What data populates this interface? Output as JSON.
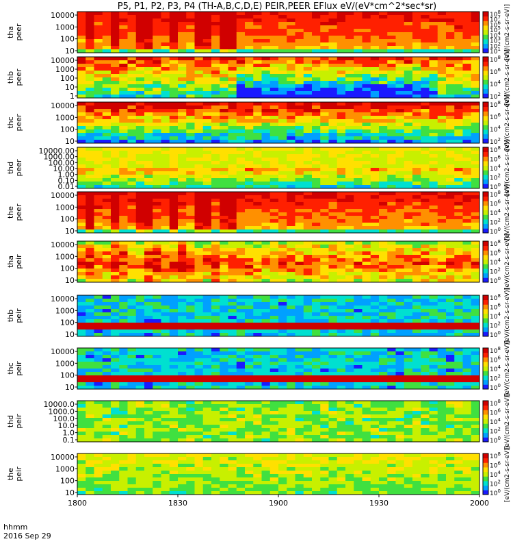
{
  "chart_data": {
    "type": "heatmap",
    "title": "P5, P1, P2, P3, P4 (TH-A,B,C,D,E) PEIR,PEER EFlux eV/(eV*cm^2*sec*sr)",
    "xaxis": {
      "corner_label": "hhmm",
      "date_label": "2016 Sep 29",
      "ticks": [
        "1800",
        "1830",
        "1900",
        "1930",
        "2000"
      ]
    },
    "colorbar_label": "[eV/(cm2-s-sr-eV)]",
    "panels": [
      {
        "probe": "tha",
        "species": "peer",
        "yticks": [
          "10",
          "100",
          "1000",
          "10000"
        ],
        "cb_ticks": [
          "10^1",
          "10^2",
          "10^3",
          "10^4",
          "10^5",
          "10^6",
          "10^7",
          "10^8"
        ],
        "style": "hot_burst"
      },
      {
        "probe": "thb",
        "species": "peer",
        "yticks": [
          "1",
          "10",
          "100",
          "1000",
          "10000"
        ],
        "cb_ticks": [
          "10^2",
          "10^4",
          "10^6",
          "10^8"
        ],
        "style": "dip"
      },
      {
        "probe": "thc",
        "species": "peer",
        "yticks": [
          "10",
          "100",
          "1000",
          "10000"
        ],
        "cb_ticks": [
          "10^2",
          "10^4",
          "10^6",
          "10^8"
        ],
        "style": "steady"
      },
      {
        "probe": "thd",
        "species": "peer",
        "yticks": [
          "0.01",
          "0.10",
          "1.00",
          "10.00",
          "100.00",
          "1000.00",
          "10000.00"
        ],
        "cb_ticks": [
          "10^0",
          "10^2",
          "10^4",
          "10^6",
          "10^8"
        ],
        "style": "wide"
      },
      {
        "probe": "the",
        "species": "peer",
        "yticks": [
          "10",
          "100",
          "1000",
          "10000"
        ],
        "cb_ticks": [
          "10^0",
          "10^2",
          "10^4",
          "10^6",
          "10^8"
        ],
        "style": "hot_burst"
      },
      {
        "probe": "tha",
        "species": "peir",
        "yticks": [
          "10",
          "100",
          "1000",
          "10000"
        ],
        "cb_ticks": [
          "10^0",
          "10^2",
          "10^4",
          "10^6",
          "10^8"
        ],
        "style": "ion_hot"
      },
      {
        "probe": "thb",
        "species": "peir",
        "yticks": [
          "10",
          "100",
          "1000",
          "10000"
        ],
        "cb_ticks": [
          "10^0",
          "10^2",
          "10^4",
          "10^6",
          "10^8"
        ],
        "style": "ion_band"
      },
      {
        "probe": "thc",
        "species": "peir",
        "yticks": [
          "10",
          "100",
          "1000",
          "10000"
        ],
        "cb_ticks": [
          "10^0",
          "10^2",
          "10^4",
          "10^6",
          "10^8"
        ],
        "style": "ion_band"
      },
      {
        "probe": "thd",
        "species": "peir",
        "yticks": [
          "0.1",
          "1.0",
          "10.0",
          "100.0",
          "1000.0",
          "10000.0"
        ],
        "cb_ticks": [
          "10^0",
          "10^2",
          "10^4",
          "10^6",
          "10^8"
        ],
        "style": "ion_green"
      },
      {
        "probe": "the",
        "species": "peir",
        "yticks": [
          "10",
          "100",
          "1000",
          "10000"
        ],
        "cb_ticks": [
          "10^0",
          "10^2",
          "10^4",
          "10^6",
          "10^8"
        ],
        "style": "ion_yellow"
      }
    ],
    "colormap": [
      "#1a1aff",
      "#00a0ff",
      "#00e0d0",
      "#40e040",
      "#c8f000",
      "#ffe000",
      "#ff9000",
      "#ff2000",
      "#d00000"
    ],
    "grid": false,
    "legend": "colorbars-right"
  }
}
